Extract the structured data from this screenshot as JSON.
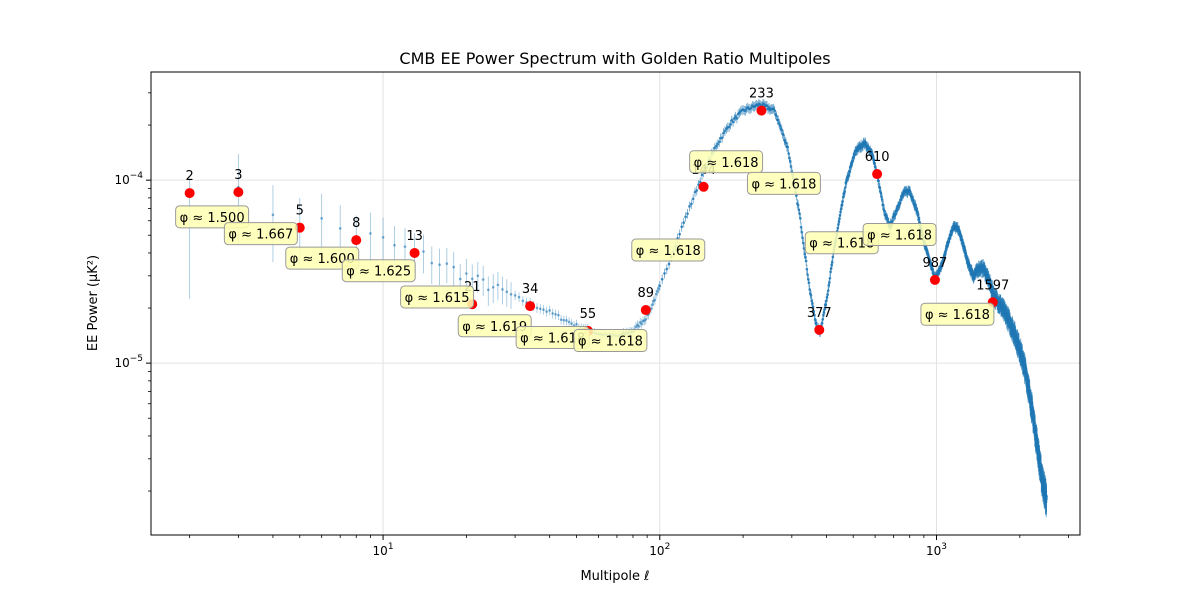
{
  "chart_data": {
    "type": "scatter",
    "title": "CMB EE Power Spectrum with Golden Ratio Multipoles",
    "xlabel": "Multipole ℓ",
    "ylabel": "EE Power (μK²)",
    "x_scale": "log",
    "y_scale": "log",
    "xlim": [
      1.45,
      3300
    ],
    "ylim": [
      1.15e-06,
      0.00039
    ],
    "grid": true,
    "x_ticks": [
      {
        "value": 10,
        "base": "10",
        "exp": "1"
      },
      {
        "value": 100,
        "base": "10",
        "exp": "2"
      },
      {
        "value": 1000,
        "base": "10",
        "exp": "3"
      }
    ],
    "y_ticks": [
      {
        "value": 1e-05,
        "base": "10",
        "exp": "−5"
      },
      {
        "value": 0.0001,
        "base": "10",
        "exp": "−4"
      }
    ],
    "colors": {
      "spectrum": "#1f77b4",
      "fibonacci": "#ff0000",
      "ratio_box": "#ffffb3",
      "ratio_box_edge": "#999999"
    },
    "spectrum_curve": {
      "x": [
        2,
        3,
        4,
        5,
        7,
        10,
        15,
        20,
        30,
        40,
        50,
        60,
        70,
        80,
        90,
        100,
        120,
        140,
        160,
        180,
        200,
        230,
        260,
        290,
        320,
        350,
        370,
        380,
        400,
        430,
        470,
        510,
        550,
        590,
        620,
        650,
        680,
        720,
        760,
        800,
        850,
        900,
        950,
        990,
        1050,
        1100,
        1150,
        1200,
        1250,
        1300,
        1360,
        1420,
        1480,
        1550,
        1620,
        1700,
        1800,
        1900,
        2000,
        2100,
        2200,
        2300,
        2400,
        2500
      ],
      "y": [
        8.3e-05,
        7.8e-05,
        7e-05,
        6.3e-05,
        5.4e-05,
        4.6e-05,
        3.7e-05,
        3e-05,
        2.3e-05,
        1.9e-05,
        1.6e-05,
        1.45e-05,
        1.4e-05,
        1.5e-05,
        1.8e-05,
        2.6e-05,
        5.5e-05,
        0.0001,
        0.000155,
        0.000205,
        0.00024,
        0.00026,
        0.00024,
        0.00015,
        6.5e-05,
        2.4e-05,
        1.55e-05,
        1.5e-05,
        2.2e-05,
        4.5e-05,
        9.5e-05,
        0.000145,
        0.00016,
        0.000135,
        9.5e-05,
        6.5e-05,
        5.6e-05,
        7e-05,
        8.5e-05,
        8.8e-05,
        6.8e-05,
        4.6e-05,
        3.5e-05,
        2.9e-05,
        3.5e-05,
        4.6e-05,
        5.6e-05,
        5.4e-05,
        4.4e-05,
        3.5e-05,
        3e-05,
        3.3e-05,
        3.3e-05,
        2.8e-05,
        2.3e-05,
        2.1e-05,
        1.8e-05,
        1.5e-05,
        1.2e-05,
        9e-06,
        6e-06,
        3.8e-06,
        2.4e-06,
        1.8e-06
      ]
    },
    "fibonacci_points": [
      {
        "x": 2,
        "y": 8.5e-05,
        "label": "2"
      },
      {
        "x": 3,
        "y": 8.6e-05,
        "label": "3"
      },
      {
        "x": 5,
        "y": 5.5e-05,
        "label": "5"
      },
      {
        "x": 8,
        "y": 4.7e-05,
        "label": "8"
      },
      {
        "x": 13,
        "y": 4e-05,
        "label": "13"
      },
      {
        "x": 21,
        "y": 2.1e-05,
        "label": "21"
      },
      {
        "x": 34,
        "y": 2.05e-05,
        "label": "34"
      },
      {
        "x": 55,
        "y": 1.5e-05,
        "label": "55"
      },
      {
        "x": 89,
        "y": 1.95e-05,
        "label": "89"
      },
      {
        "x": 144,
        "y": 9.2e-05,
        "label": "144"
      },
      {
        "x": 233,
        "y": 0.00024,
        "label": "233"
      },
      {
        "x": 377,
        "y": 1.52e-05,
        "label": "377"
      },
      {
        "x": 610,
        "y": 0.000108,
        "label": "610"
      },
      {
        "x": 987,
        "y": 2.85e-05,
        "label": "987"
      },
      {
        "x": 1597,
        "y": 2.15e-05,
        "label": "1597"
      }
    ],
    "ratio_annotations": [
      {
        "x": 2,
        "y": 6.3e-05,
        "text": "φ ≈ 1.500"
      },
      {
        "x": 3,
        "y": 5.1e-05,
        "text": "φ ≈ 1.667"
      },
      {
        "x": 5,
        "y": 3.75e-05,
        "text": "φ ≈ 1.600"
      },
      {
        "x": 8,
        "y": 3.2e-05,
        "text": "φ ≈ 1.625"
      },
      {
        "x": 13,
        "y": 2.3e-05,
        "text": "φ ≈ 1.615"
      },
      {
        "x": 21,
        "y": 1.6e-05,
        "text": "φ ≈ 1.619"
      },
      {
        "x": 34,
        "y": 1.38e-05,
        "text": "φ ≈ 1.618"
      },
      {
        "x": 55,
        "y": 1.33e-05,
        "text": "φ ≈ 1.618"
      },
      {
        "x": 89,
        "y": 4.15e-05,
        "text": "φ ≈ 1.618"
      },
      {
        "x": 144,
        "y": 0.000126,
        "text": "φ ≈ 1.618"
      },
      {
        "x": 233,
        "y": 9.6e-05,
        "text": "φ ≈ 1.618"
      },
      {
        "x": 377,
        "y": 4.55e-05,
        "text": "φ ≈ 1.618"
      },
      {
        "x": 610,
        "y": 5.05e-05,
        "text": "φ ≈ 1.618"
      },
      {
        "x": 987,
        "y": 1.85e-05,
        "text": "φ ≈ 1.618"
      }
    ]
  }
}
